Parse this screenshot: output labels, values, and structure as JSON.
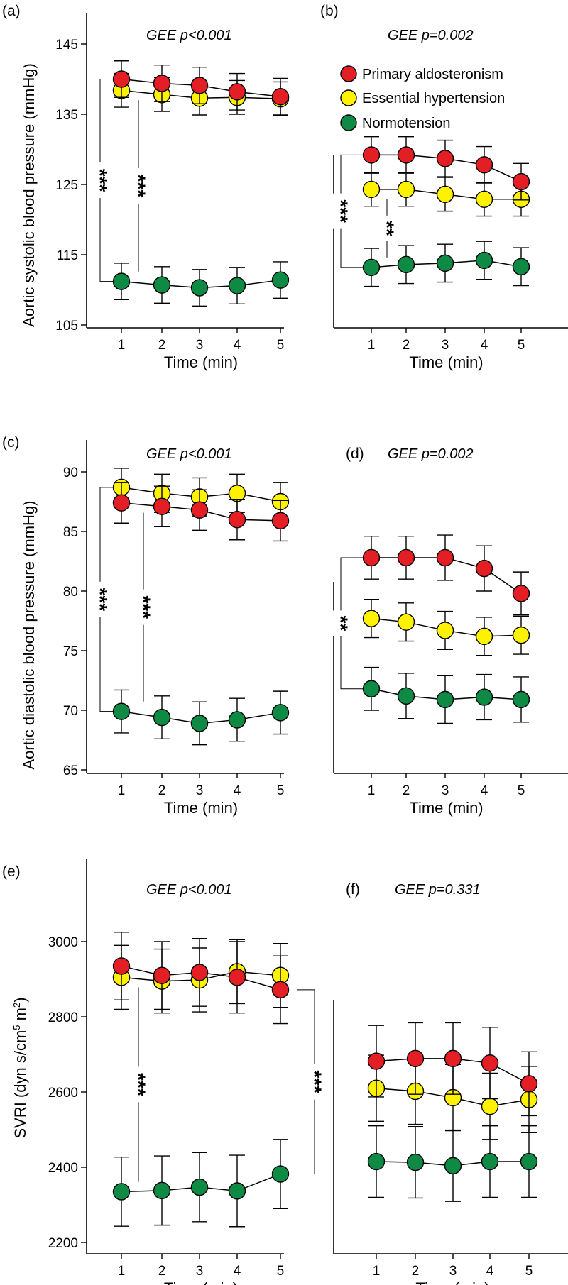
{
  "figure": {
    "x_label": "Time (min)",
    "legend": [
      {
        "name": "Primary aldosteronism",
        "color": "#e31e24"
      },
      {
        "name": "Essential hypertension",
        "color": "#fff200"
      },
      {
        "name": "Normotension",
        "color": "#0f8a45"
      }
    ],
    "row_titles": [
      "Aortic systolic blood pressure (mmHg)",
      "Aortic diastolic blood pressure (mmHg)",
      "SVRI (dyn s/cm5 m2)"
    ]
  },
  "chart_data": [
    {
      "panel": "(a)",
      "type": "line",
      "title": "GEE p<0.001",
      "xlabel": "Time (min)",
      "ylabel": "Aortic systolic blood pressure (mmHg)",
      "x": [
        1,
        2,
        3,
        4,
        5
      ],
      "ylim": [
        105,
        149
      ],
      "yticks": [
        105,
        115,
        125,
        135,
        145
      ],
      "series": [
        {
          "name": "Primary aldosteronism",
          "color": "#e31e24",
          "values": [
            140.0,
            139.4,
            139.1,
            138.2,
            137.5
          ],
          "errors": [
            2.6,
            2.6,
            2.6,
            2.6,
            2.6
          ]
        },
        {
          "name": "Essential hypertension",
          "color": "#fff200",
          "values": [
            138.4,
            137.8,
            137.3,
            137.4,
            137.2
          ],
          "errors": [
            2.4,
            2.4,
            2.4,
            2.4,
            2.4
          ]
        },
        {
          "name": "Normotension",
          "color": "#0f8a45",
          "values": [
            111.2,
            110.7,
            110.3,
            110.6,
            111.4
          ],
          "errors": [
            2.6,
            2.6,
            2.6,
            2.6,
            2.6
          ]
        }
      ],
      "significance": [
        {
          "label": "***",
          "from": 140.0,
          "to": 111.2
        },
        {
          "label": "***",
          "from": 138.4,
          "to": 111.2
        }
      ]
    },
    {
      "panel": "(b)",
      "type": "line",
      "title": "GEE p=0.002",
      "xlabel": "Time (min)",
      "ylabel": "",
      "x": [
        1,
        2,
        3,
        4,
        5
      ],
      "ylim": [
        105,
        149
      ],
      "yticks": [],
      "series": [
        {
          "name": "Primary aldosteronism",
          "color": "#e31e24",
          "values": [
            129.2,
            129.2,
            128.7,
            127.8,
            125.4
          ],
          "errors": [
            2.6,
            2.6,
            2.6,
            2.6,
            2.6
          ]
        },
        {
          "name": "Essential hypertension",
          "color": "#fff200",
          "values": [
            124.3,
            124.3,
            123.6,
            122.9,
            122.9
          ],
          "errors": [
            2.4,
            2.4,
            2.4,
            2.4,
            2.4
          ]
        },
        {
          "name": "Normotension",
          "color": "#0f8a45",
          "values": [
            113.2,
            113.6,
            113.8,
            114.2,
            113.3
          ],
          "errors": [
            2.7,
            2.7,
            2.7,
            2.7,
            2.7
          ]
        }
      ],
      "significance": [
        {
          "label": "***",
          "from": 129.2,
          "to": 113.2
        },
        {
          "label": "**",
          "from": 124.3,
          "to": 113.2
        }
      ]
    },
    {
      "panel": "(c)",
      "type": "line",
      "title": "GEE p<0.001",
      "xlabel": "Time (min)",
      "ylabel": "Aortic diastolic blood pressure (mmHg)",
      "x": [
        1,
        2,
        3,
        4,
        5
      ],
      "ylim": [
        65,
        92.5
      ],
      "yticks": [
        65,
        70,
        75,
        80,
        85,
        90
      ],
      "series": [
        {
          "name": "Primary aldosteronism",
          "color": "#e31e24",
          "values": [
            87.4,
            87.1,
            86.8,
            86.0,
            85.9
          ],
          "errors": [
            1.7,
            1.7,
            1.7,
            1.7,
            1.7
          ]
        },
        {
          "name": "Essential hypertension",
          "color": "#fff200",
          "values": [
            88.7,
            88.2,
            87.9,
            88.2,
            87.5
          ],
          "errors": [
            1.6,
            1.6,
            1.6,
            1.6,
            1.6
          ]
        },
        {
          "name": "Normotension",
          "color": "#0f8a45",
          "values": [
            69.9,
            69.4,
            68.9,
            69.2,
            69.8
          ],
          "errors": [
            1.8,
            1.8,
            1.8,
            1.8,
            1.8
          ]
        }
      ],
      "significance": [
        {
          "label": "***",
          "from": 88.7,
          "to": 69.9
        },
        {
          "label": "***",
          "from": 87.4,
          "to": 69.9
        }
      ]
    },
    {
      "panel": "(d)",
      "type": "line",
      "title": "GEE p=0.002",
      "xlabel": "Time (min)",
      "ylabel": "",
      "x": [
        1,
        2,
        3,
        4,
        5
      ],
      "ylim": [
        65,
        92.5
      ],
      "yticks": [],
      "series": [
        {
          "name": "Primary aldosteronism",
          "color": "#e31e24",
          "values": [
            82.8,
            82.8,
            82.8,
            81.9,
            79.8
          ],
          "errors": [
            1.8,
            1.8,
            1.9,
            1.9,
            1.8
          ]
        },
        {
          "name": "Essential hypertension",
          "color": "#fff200",
          "values": [
            77.7,
            77.4,
            76.7,
            76.2,
            76.3
          ],
          "errors": [
            1.6,
            1.6,
            1.6,
            1.6,
            1.6
          ]
        },
        {
          "name": "Normotension",
          "color": "#0f8a45",
          "values": [
            71.8,
            71.2,
            70.9,
            71.1,
            70.9
          ],
          "errors": [
            1.8,
            1.9,
            2.0,
            1.9,
            1.9
          ]
        }
      ],
      "significance": [
        {
          "label": "**",
          "from": 82.8,
          "to": 71.8
        }
      ]
    },
    {
      "panel": "(e)",
      "type": "line",
      "title": "GEE p<0.001",
      "xlabel": "Time (min)",
      "ylabel": "SVRI (dyn s/cm5 m2)",
      "x": [
        1,
        2,
        3,
        4,
        5
      ],
      "ylim": [
        2170,
        3140
      ],
      "yticks": [
        2200,
        2400,
        2600,
        2800,
        3000
      ],
      "series": [
        {
          "name": "Primary aldosteronism",
          "color": "#e31e24",
          "values": [
            2935,
            2910,
            2918,
            2905,
            2872
          ],
          "errors": [
            90,
            90,
            90,
            95,
            90
          ]
        },
        {
          "name": "Essential hypertension",
          "color": "#fff200",
          "values": [
            2905,
            2895,
            2898,
            2920,
            2910
          ],
          "errors": [
            85,
            85,
            85,
            85,
            85
          ]
        },
        {
          "name": "Normotension",
          "color": "#0f8a45",
          "values": [
            2335,
            2338,
            2347,
            2337,
            2382
          ],
          "errors": [
            92,
            92,
            92,
            95,
            92
          ]
        }
      ],
      "significance": [
        {
          "label": "***",
          "from": 2905,
          "to": 2335,
          "side": "left"
        },
        {
          "label": "***",
          "from": 2872,
          "to": 2382,
          "side": "right"
        }
      ]
    },
    {
      "panel": "(f)",
      "type": "line",
      "title": "GEE p=0.331",
      "xlabel": "Time (min)",
      "ylabel": "",
      "x": [
        1,
        2,
        3,
        4,
        5
      ],
      "ylim": [
        2170,
        3140
      ],
      "yticks": [],
      "series": [
        {
          "name": "Primary aldosteronism",
          "color": "#e31e24",
          "values": [
            2682,
            2689,
            2689,
            2677,
            2622
          ],
          "errors": [
            95,
            95,
            95,
            95,
            85
          ]
        },
        {
          "name": "Essential hypertension",
          "color": "#fff200",
          "values": [
            2610,
            2602,
            2585,
            2562,
            2580
          ],
          "errors": [
            88,
            88,
            88,
            88,
            88
          ]
        },
        {
          "name": "Normotension",
          "color": "#0f8a45",
          "values": [
            2415,
            2413,
            2404,
            2415,
            2415
          ],
          "errors": [
            95,
            95,
            95,
            95,
            95
          ]
        }
      ],
      "significance": []
    }
  ]
}
